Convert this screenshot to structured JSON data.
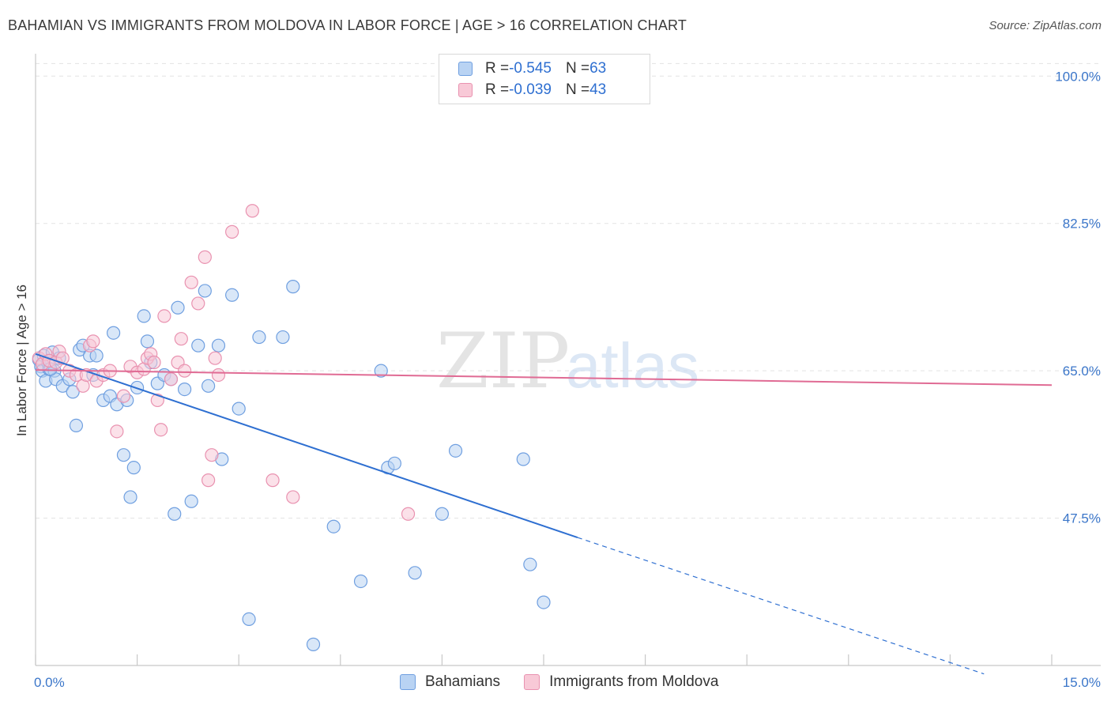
{
  "title": "BAHAMIAN VS IMMIGRANTS FROM MOLDOVA IN LABOR FORCE | AGE > 16 CORRELATION CHART",
  "source": "Source: ZipAtlas.com",
  "watermark": {
    "zip": "ZIP",
    "atlas": "atlas"
  },
  "legend": {
    "rows": [
      {
        "r_label": "R = ",
        "r_value": "-0.545",
        "n_label": "N = ",
        "n_value": "63",
        "fill": "#b9d3f3",
        "stroke": "#6f9fe0"
      },
      {
        "r_label": "R = ",
        "r_value": "-0.039",
        "n_label": "N = ",
        "n_value": "43",
        "fill": "#f8c9d7",
        "stroke": "#e992b0"
      }
    ]
  },
  "chart_data": {
    "type": "scatter",
    "title": "BAHAMIAN VS IMMIGRANTS FROM MOLDOVA IN LABOR FORCE | AGE > 16 CORRELATION CHART",
    "xlabel": "",
    "ylabel": "In Labor Force | Age > 16",
    "xlim": [
      0,
      15
    ],
    "ylim": [
      30,
      102
    ],
    "x_tick_labels": [
      "0.0%",
      "15.0%"
    ],
    "y_ticks": [
      47.5,
      65.0,
      82.5,
      100.0
    ],
    "y_tick_labels": [
      "47.5%",
      "65.0%",
      "82.5%",
      "100.0%"
    ],
    "series": [
      {
        "name": "Bahamians",
        "color": "#6f9fe0",
        "fill": "#b9d3f3",
        "line_color": "#2e6fd1",
        "trend": {
          "x0": 0.0,
          "y0": 67.0,
          "x1": 8.0,
          "y1": 45.2,
          "dash_x1": 14.0,
          "dash_y1": 29.0
        },
        "points": [
          [
            0.05,
            66.3
          ],
          [
            0.08,
            65.5
          ],
          [
            0.1,
            65.0
          ],
          [
            0.12,
            66.8
          ],
          [
            0.15,
            63.8
          ],
          [
            0.18,
            66.0
          ],
          [
            0.2,
            65.2
          ],
          [
            0.25,
            67.2
          ],
          [
            0.28,
            65.0
          ],
          [
            0.3,
            64.0
          ],
          [
            0.35,
            66.5
          ],
          [
            0.4,
            63.2
          ],
          [
            0.5,
            64.0
          ],
          [
            0.55,
            62.5
          ],
          [
            0.6,
            58.5
          ],
          [
            0.65,
            67.5
          ],
          [
            0.7,
            68.0
          ],
          [
            0.8,
            66.8
          ],
          [
            0.85,
            64.5
          ],
          [
            0.9,
            66.8
          ],
          [
            1.0,
            61.5
          ],
          [
            1.1,
            62.0
          ],
          [
            1.15,
            69.5
          ],
          [
            1.2,
            61.0
          ],
          [
            1.3,
            55.0
          ],
          [
            1.35,
            61.5
          ],
          [
            1.4,
            50.0
          ],
          [
            1.45,
            53.5
          ],
          [
            1.5,
            63.0
          ],
          [
            1.6,
            71.5
          ],
          [
            1.65,
            68.5
          ],
          [
            1.7,
            66.0
          ],
          [
            1.8,
            63.5
          ],
          [
            1.9,
            64.5
          ],
          [
            2.0,
            64.0
          ],
          [
            2.05,
            48.0
          ],
          [
            2.1,
            72.5
          ],
          [
            2.2,
            62.8
          ],
          [
            2.3,
            49.5
          ],
          [
            2.4,
            68.0
          ],
          [
            2.5,
            74.5
          ],
          [
            2.55,
            63.2
          ],
          [
            2.7,
            68.0
          ],
          [
            2.75,
            54.5
          ],
          [
            2.9,
            74.0
          ],
          [
            3.0,
            60.5
          ],
          [
            3.15,
            35.5
          ],
          [
            3.3,
            69.0
          ],
          [
            3.65,
            69.0
          ],
          [
            3.8,
            75.0
          ],
          [
            4.1,
            32.5
          ],
          [
            4.4,
            46.5
          ],
          [
            4.8,
            40.0
          ],
          [
            5.1,
            65.0
          ],
          [
            5.2,
            53.5
          ],
          [
            5.3,
            54.0
          ],
          [
            5.6,
            41.0
          ],
          [
            6.0,
            48.0
          ],
          [
            6.2,
            55.5
          ],
          [
            7.2,
            54.5
          ],
          [
            7.3,
            42.0
          ],
          [
            7.5,
            37.5
          ],
          [
            0.22,
            65.2
          ]
        ]
      },
      {
        "name": "Immigrants from Moldova",
        "color": "#e992b0",
        "fill": "#f8c9d7",
        "line_color": "#e06b94",
        "trend": {
          "x0": 0.0,
          "y0": 65.1,
          "x1": 15.0,
          "y1": 63.3
        },
        "points": [
          [
            0.05,
            66.5
          ],
          [
            0.1,
            65.8
          ],
          [
            0.15,
            67.0
          ],
          [
            0.2,
            66.2
          ],
          [
            0.3,
            66.0
          ],
          [
            0.35,
            67.3
          ],
          [
            0.4,
            66.5
          ],
          [
            0.5,
            65.0
          ],
          [
            0.6,
            64.5
          ],
          [
            0.7,
            63.2
          ],
          [
            0.75,
            64.5
          ],
          [
            0.8,
            68.0
          ],
          [
            0.85,
            68.5
          ],
          [
            0.9,
            63.8
          ],
          [
            1.0,
            64.5
          ],
          [
            1.1,
            65.0
          ],
          [
            1.2,
            57.8
          ],
          [
            1.3,
            62.0
          ],
          [
            1.4,
            65.5
          ],
          [
            1.5,
            64.8
          ],
          [
            1.6,
            65.2
          ],
          [
            1.65,
            66.5
          ],
          [
            1.7,
            67.0
          ],
          [
            1.75,
            66.0
          ],
          [
            1.8,
            61.5
          ],
          [
            1.85,
            58.0
          ],
          [
            1.9,
            71.5
          ],
          [
            2.0,
            64.0
          ],
          [
            2.1,
            66.0
          ],
          [
            2.15,
            68.8
          ],
          [
            2.2,
            65.0
          ],
          [
            2.3,
            75.5
          ],
          [
            2.4,
            73.0
          ],
          [
            2.5,
            78.5
          ],
          [
            2.55,
            52.0
          ],
          [
            2.6,
            55.0
          ],
          [
            2.65,
            66.5
          ],
          [
            2.7,
            64.5
          ],
          [
            2.9,
            81.5
          ],
          [
            3.2,
            84.0
          ],
          [
            3.5,
            52.0
          ],
          [
            3.8,
            50.0
          ],
          [
            5.5,
            48.0
          ]
        ]
      }
    ]
  },
  "bottom_legend": [
    "Bahamians",
    "Immigrants from Moldova"
  ],
  "colors": {
    "grid": "#e3e3e3",
    "axis": "#c8c8c8",
    "tick_text": "#3b76c9",
    "blue_line": "#2e6fd1",
    "pink_line": "#e06b94"
  }
}
